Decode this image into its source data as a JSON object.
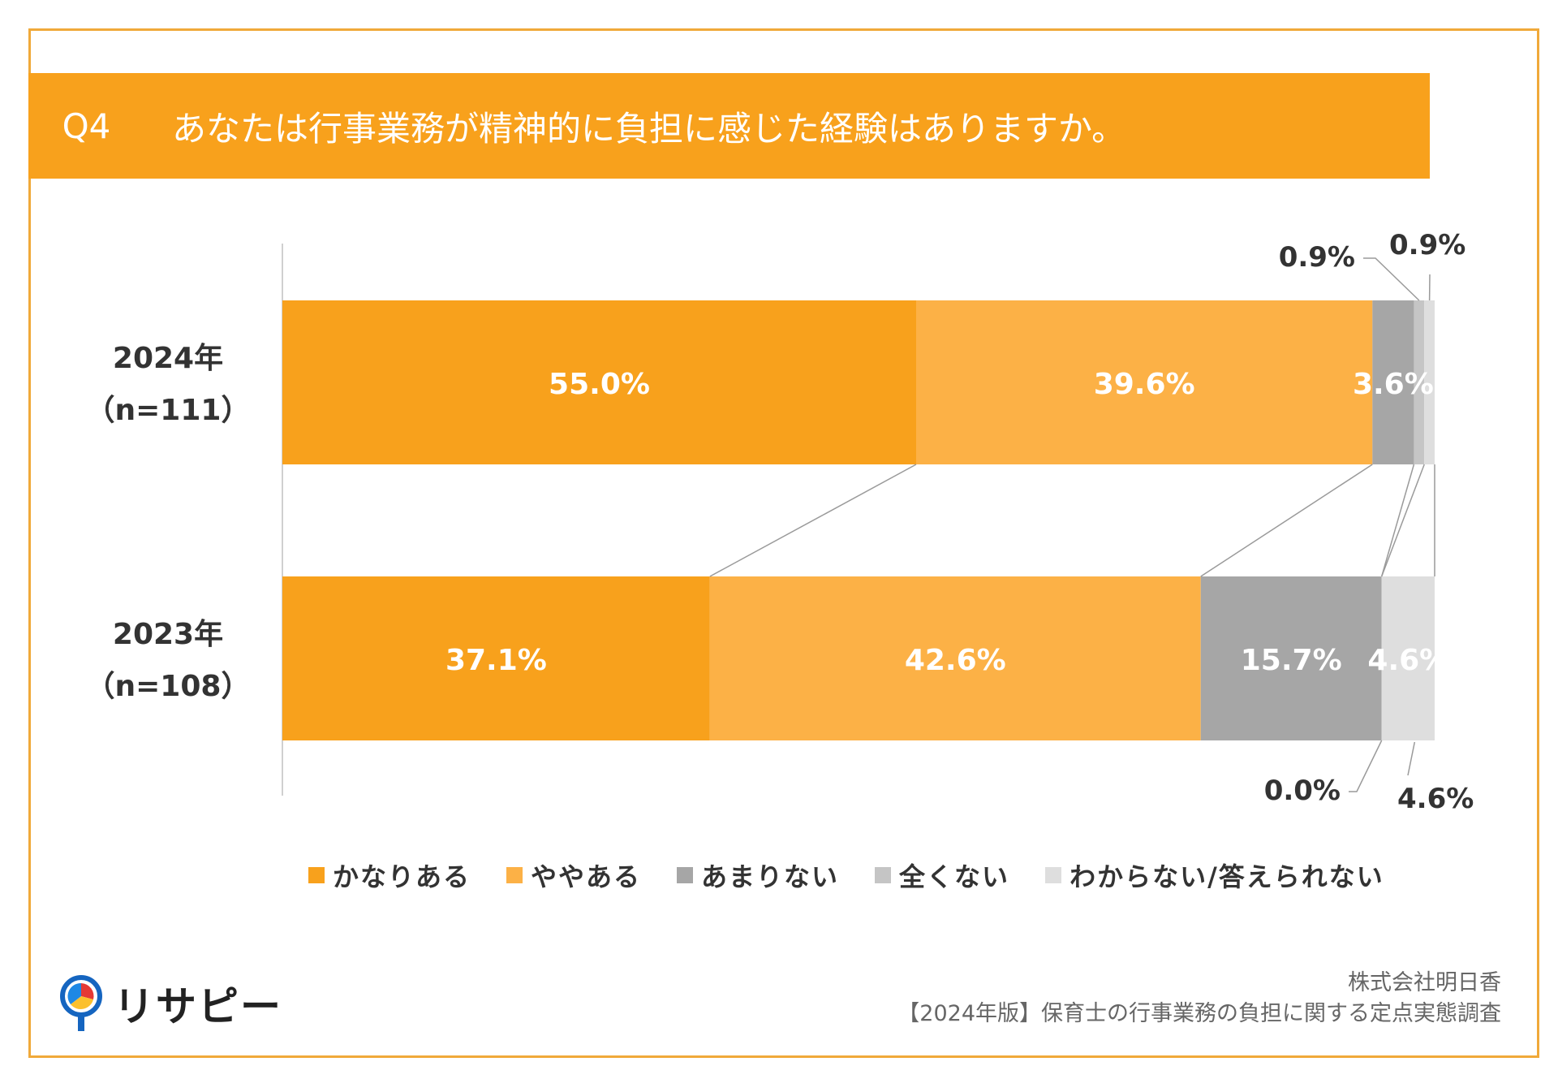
{
  "header": {
    "question_no": "Q4",
    "question": "あなたは行事業務が精神的に負担に感じた経験はありますか。"
  },
  "chart_data": {
    "type": "bar",
    "orientation": "horizontal-stacked-100",
    "categories": [
      {
        "year": "2024年",
        "n": "（n=111）"
      },
      {
        "year": "2023年",
        "n": "（n=108）"
      }
    ],
    "series": [
      {
        "name": "かなりある",
        "color": "#f8a11c",
        "values": [
          55.0,
          37.1
        ],
        "labels": [
          "55.0%",
          "37.1%"
        ]
      },
      {
        "name": "ややある",
        "color": "#fcb146",
        "values": [
          39.6,
          42.6
        ],
        "labels": [
          "39.6%",
          "42.6%"
        ]
      },
      {
        "name": "あまりない",
        "color": "#a6a6a6",
        "values": [
          3.6,
          15.7
        ],
        "labels": [
          "3.6%",
          "15.7%"
        ]
      },
      {
        "name": "全くない",
        "color": "#c5c5c5",
        "values": [
          0.9,
          0.0
        ],
        "labels": [
          "0.9%",
          "0.0%"
        ]
      },
      {
        "name": "わからない/答えられない",
        "color": "#dedede",
        "values": [
          0.9,
          4.6
        ],
        "labels": [
          "0.9%",
          "4.6%"
        ]
      }
    ],
    "xlim": [
      0,
      100
    ],
    "legend_position": "bottom",
    "grid": false
  },
  "brand": {
    "logo_text": "リサピー"
  },
  "footer": {
    "company": "株式会社明日香",
    "survey": "【2024年版】保育士の行事業務の負担に関する定点実態調査"
  }
}
